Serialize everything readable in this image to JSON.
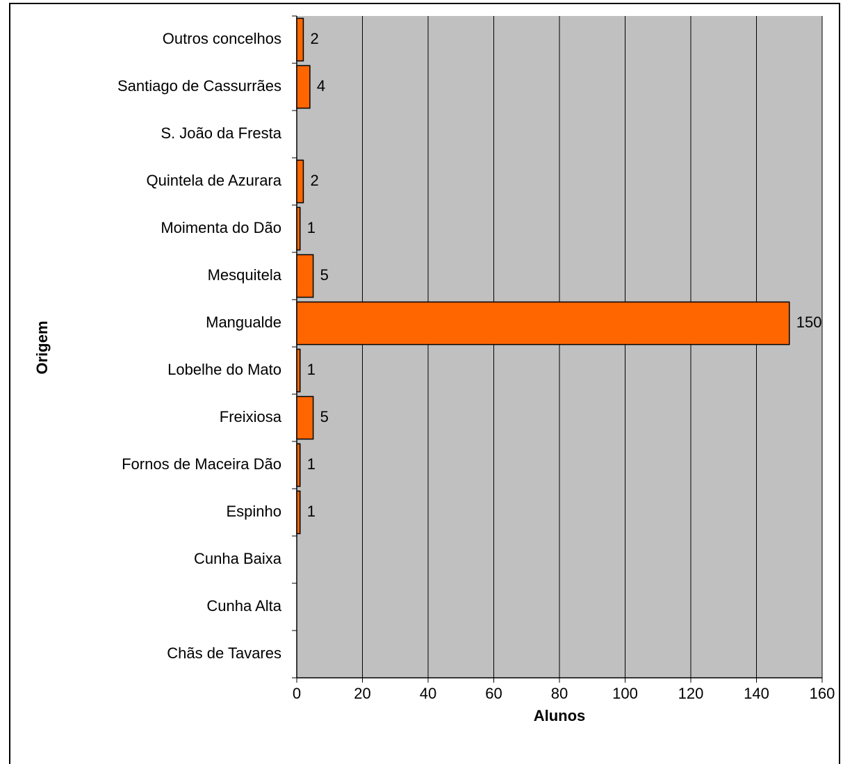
{
  "chart_data": {
    "type": "hbar",
    "x_label": "Alunos",
    "y_label": "Origem",
    "categories": [
      "Outros concelhos",
      "Santiago de Cassurrães",
      "S. João da Fresta",
      "Quintela de Azurara",
      "Moimenta do Dão",
      "Mesquitela",
      "Mangualde",
      "Lobelhe do Mato",
      "Freixiosa",
      "Fornos de Maceira Dão",
      "Espinho",
      "Cunha Baixa",
      "Cunha Alta",
      "Chãs de Tavares"
    ],
    "values": [
      2,
      4,
      null,
      2,
      1,
      5,
      150,
      1,
      5,
      1,
      1,
      null,
      null,
      null
    ],
    "color": "#ff6600",
    "xlim": [
      0,
      160
    ],
    "xticks": [
      0,
      20,
      40,
      60,
      80,
      100,
      120,
      140,
      160
    ],
    "grid": true,
    "plot_background": "#c0c0c0"
  }
}
